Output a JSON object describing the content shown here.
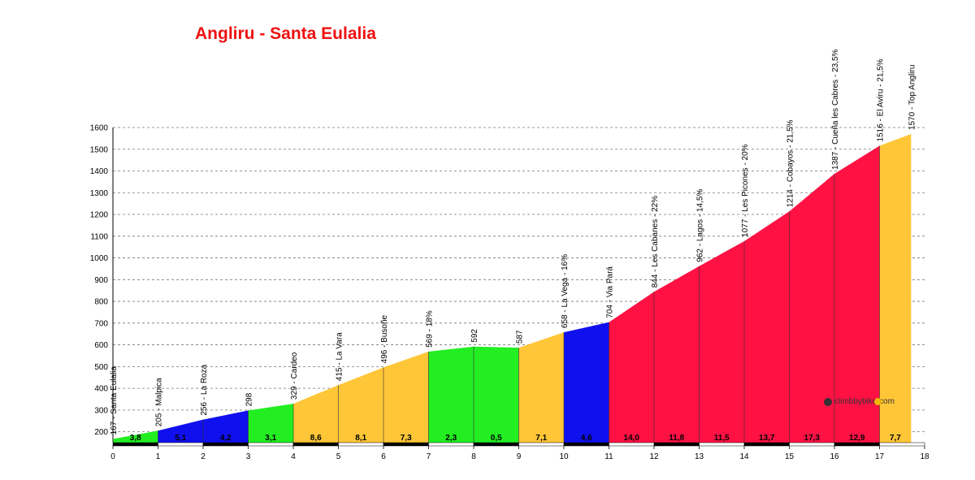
{
  "chart_data": {
    "type": "area",
    "title": "Angliru - Santa Eulalia",
    "xlabel": "",
    "ylabel": "",
    "xlim": [
      0,
      18
    ],
    "ylim": [
      150,
      1600
    ],
    "y_ticks": [
      200,
      300,
      400,
      500,
      600,
      700,
      800,
      900,
      1000,
      1100,
      1200,
      1300,
      1400,
      1500,
      1600
    ],
    "x_ticks": [
      0,
      1,
      2,
      3,
      4,
      5,
      6,
      7,
      8,
      9,
      10,
      11,
      12,
      13,
      14,
      15,
      16,
      17,
      18
    ],
    "grid": "horizontal dashed",
    "profile": [
      {
        "x": 0,
        "y": 167
      },
      {
        "x": 1,
        "y": 205
      },
      {
        "x": 2,
        "y": 256
      },
      {
        "x": 3,
        "y": 298
      },
      {
        "x": 4,
        "y": 329
      },
      {
        "x": 5,
        "y": 415
      },
      {
        "x": 6,
        "y": 496
      },
      {
        "x": 7,
        "y": 569
      },
      {
        "x": 8,
        "y": 592
      },
      {
        "x": 9,
        "y": 587
      },
      {
        "x": 10,
        "y": 658
      },
      {
        "x": 11,
        "y": 704
      },
      {
        "x": 12,
        "y": 844
      },
      {
        "x": 13,
        "y": 962
      },
      {
        "x": 14,
        "y": 1077
      },
      {
        "x": 15,
        "y": 1214
      },
      {
        "x": 16,
        "y": 1387
      },
      {
        "x": 17,
        "y": 1516
      },
      {
        "x": 17.7,
        "y": 1570
      }
    ],
    "segments": [
      {
        "from": 0,
        "to": 1,
        "gradient": "3,8",
        "color": "#22ee22"
      },
      {
        "from": 1,
        "to": 2,
        "gradient": "5,1",
        "color": "#1010ee"
      },
      {
        "from": 2,
        "to": 3,
        "gradient": "4,2",
        "color": "#1010ee"
      },
      {
        "from": 3,
        "to": 4,
        "gradient": "3,1",
        "color": "#22ee22"
      },
      {
        "from": 4,
        "to": 5,
        "gradient": "8,6",
        "color": "#ffc637"
      },
      {
        "from": 5,
        "to": 6,
        "gradient": "8,1",
        "color": "#ffc637"
      },
      {
        "from": 6,
        "to": 7,
        "gradient": "7,3",
        "color": "#ffc637"
      },
      {
        "from": 7,
        "to": 8,
        "gradient": "2,3",
        "color": "#22ee22"
      },
      {
        "from": 8,
        "to": 9,
        "gradient": "0,5",
        "color": "#22ee22"
      },
      {
        "from": 9,
        "to": 10,
        "gradient": "7,1",
        "color": "#ffc637"
      },
      {
        "from": 10,
        "to": 11,
        "gradient": "4,6",
        "color": "#1010ee"
      },
      {
        "from": 11,
        "to": 12,
        "gradient": "14,0",
        "color": "#ff1144"
      },
      {
        "from": 12,
        "to": 13,
        "gradient": "11,8",
        "color": "#ff1144"
      },
      {
        "from": 13,
        "to": 14,
        "gradient": "11,5",
        "color": "#ff1144"
      },
      {
        "from": 14,
        "to": 15,
        "gradient": "13,7",
        "color": "#ff1144"
      },
      {
        "from": 15,
        "to": 16,
        "gradient": "17,3",
        "color": "#ff1144"
      },
      {
        "from": 16,
        "to": 17,
        "gradient": "12,9",
        "color": "#ff1144"
      },
      {
        "from": 17,
        "to": 17.7,
        "gradient": "7,7",
        "color": "#ffc637"
      }
    ],
    "annotations": [
      {
        "x": 0,
        "y": 167,
        "text": "167 - Santa Eulalia"
      },
      {
        "x": 1,
        "y": 205,
        "text": "205 - Malpica"
      },
      {
        "x": 2,
        "y": 256,
        "text": "256 - La Roza"
      },
      {
        "x": 3,
        "y": 298,
        "text": "298"
      },
      {
        "x": 4,
        "y": 329,
        "text": "329 - Cardeo"
      },
      {
        "x": 5,
        "y": 415,
        "text": "415 - La Vara"
      },
      {
        "x": 6,
        "y": 496,
        "text": "496 - Busoñe"
      },
      {
        "x": 7,
        "y": 569,
        "text": "569 - 18%"
      },
      {
        "x": 8,
        "y": 592,
        "text": "592"
      },
      {
        "x": 9,
        "y": 587,
        "text": "587"
      },
      {
        "x": 10,
        "y": 658,
        "text": "658 - La Vega - 16%"
      },
      {
        "x": 11,
        "y": 704,
        "text": "704 - Via Pará"
      },
      {
        "x": 12,
        "y": 844,
        "text": "844 - Les Cabanes - 22%"
      },
      {
        "x": 13,
        "y": 962,
        "text": "962 - Lagos - 14,5%"
      },
      {
        "x": 14,
        "y": 1077,
        "text": "1077 - Les Picones - 20%"
      },
      {
        "x": 15,
        "y": 1214,
        "text": "1214 - Cobayos - 21,5%"
      },
      {
        "x": 16,
        "y": 1387,
        "text": "1387 - Cueña les Cabres - 23,5%"
      },
      {
        "x": 17,
        "y": 1516,
        "text": "1516 - El Aviru - 21,5%"
      },
      {
        "x": 17.7,
        "y": 1570,
        "text": "1570 - Top Angliru"
      }
    ],
    "logo": "climbbybike.com"
  }
}
